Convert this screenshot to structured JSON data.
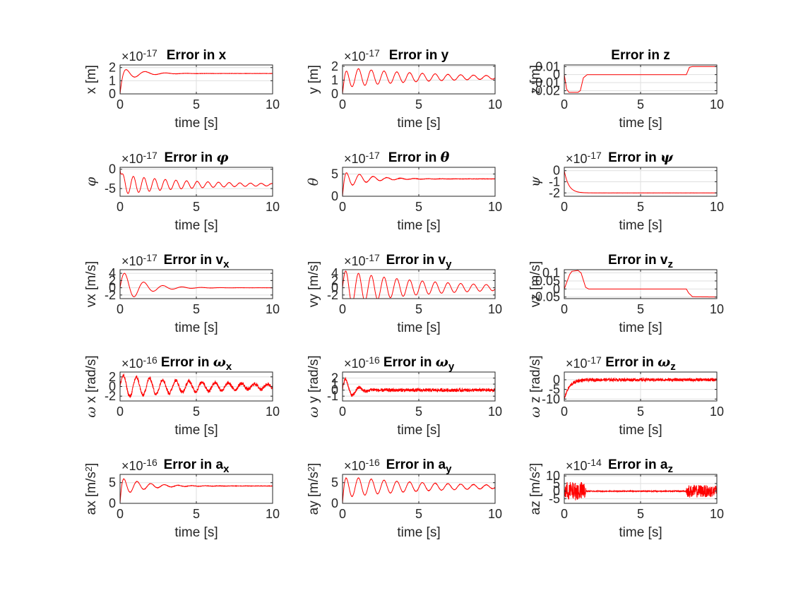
{
  "figure": {
    "background": "#ffffff",
    "line_color": "#ff0000",
    "grid_color": "#dfdfdf",
    "axis_color": "#262626"
  },
  "chart_data": [
    {
      "type": "line",
      "title": "Error in x",
      "title_parts": [
        {
          "t": "Error in x"
        }
      ],
      "xlabel": "time [s]",
      "ylabel": "x [m]",
      "ylabel_parts": [
        {
          "t": "x [m]"
        }
      ],
      "xlim": [
        0,
        10
      ],
      "ylim": [
        0,
        2.2
      ],
      "xticks": [
        0,
        5,
        10
      ],
      "yticks": [
        0,
        1,
        2
      ],
      "exponent": "×10",
      "exponent_power": "-17",
      "grid": true,
      "series": [
        {
          "signal": {
            "kind": "damped",
            "final": 1.55,
            "amp": 0.65,
            "omega": 4.7,
            "decay": 0.9,
            "phase": -1.57,
            "rise": 0.15,
            "noise": 0.01
          }
        }
      ]
    },
    {
      "type": "line",
      "title": "Error in y",
      "title_parts": [
        {
          "t": "Error in y"
        }
      ],
      "xlabel": "time [s]",
      "ylabel": "y [m]",
      "ylabel_parts": [
        {
          "t": "y [m]"
        }
      ],
      "xlim": [
        0,
        10
      ],
      "ylim": [
        0,
        2.1
      ],
      "xticks": [
        0,
        5,
        10
      ],
      "yticks": [
        0,
        1,
        2
      ],
      "exponent": "×10",
      "exponent_power": "-17",
      "grid": true,
      "series": [
        {
          "signal": {
            "kind": "damped",
            "final": 1.2,
            "amp": 0.75,
            "omega": 7.5,
            "decay": 0.18,
            "phase": -1.57,
            "rise": 0.12,
            "noise": 0.01
          }
        }
      ]
    },
    {
      "type": "line",
      "title": "Error in z",
      "title_parts": [
        {
          "t": "Error in z"
        }
      ],
      "xlabel": "time [s]",
      "ylabel": "z [m]",
      "ylabel_parts": [
        {
          "t": "z [m]"
        }
      ],
      "xlim": [
        0,
        10
      ],
      "ylim": [
        -0.024,
        0.012
      ],
      "xticks": [
        0,
        5,
        10
      ],
      "yticks": [
        -0.02,
        -0.01,
        0,
        0.01
      ],
      "grid": true,
      "series": [
        {
          "signal": {
            "kind": "points",
            "points": [
              [
                0,
                0.0
              ],
              [
                0.15,
                -0.018
              ],
              [
                0.3,
                -0.022
              ],
              [
                0.9,
                -0.022
              ],
              [
                1.05,
                -0.02
              ],
              [
                1.25,
                -0.004
              ],
              [
                1.5,
                -0.0001
              ],
              [
                8.0,
                -0.0001
              ],
              [
                8.2,
                0.009
              ],
              [
                8.4,
                0.01
              ],
              [
                10,
                0.01
              ]
            ]
          }
        }
      ]
    },
    {
      "type": "line",
      "title": "Error in φ",
      "title_parts": [
        {
          "t": "Error in "
        },
        {
          "t": "φ",
          "g": 1
        }
      ],
      "xlabel": "time [s]",
      "ylabel": "φ",
      "ylabel_parts": [
        {
          "t": "φ",
          "g": 1
        }
      ],
      "xlim": [
        0,
        10
      ],
      "ylim": [
        -7,
        0.5
      ],
      "xticks": [
        0,
        5,
        10
      ],
      "yticks": [
        -5,
        0
      ],
      "exponent": "×10",
      "exponent_power": "-17",
      "grid": true,
      "series": [
        {
          "signal": {
            "kind": "damped",
            "final": -4.0,
            "amp": 2.6,
            "omega": 9.0,
            "decay": 0.22,
            "phase": -1.57,
            "rise": 0.1,
            "noise": 0.03
          }
        }
      ]
    },
    {
      "type": "line",
      "title": "Error in θ",
      "title_parts": [
        {
          "t": "Error in "
        },
        {
          "t": "θ",
          "g": 1
        }
      ],
      "xlabel": "time [s]",
      "ylabel": "θ",
      "ylabel_parts": [
        {
          "t": "θ",
          "g": 1
        }
      ],
      "xlim": [
        0,
        10
      ],
      "ylim": [
        0,
        6.5
      ],
      "xticks": [
        0,
        5,
        10
      ],
      "yticks": [
        0,
        5
      ],
      "exponent": "×10",
      "exponent_power": "-17",
      "grid": true,
      "series": [
        {
          "signal": {
            "kind": "damped",
            "final": 3.9,
            "amp": 2.2,
            "omega": 7.0,
            "decay": 0.7,
            "phase": -1.57,
            "rise": 0.1,
            "noise": 0.04
          }
        }
      ]
    },
    {
      "type": "line",
      "title": "Error in ψ",
      "title_parts": [
        {
          "t": "Error in "
        },
        {
          "t": "ψ",
          "g": 1
        }
      ],
      "xlabel": "time [s]",
      "ylabel": "ψ",
      "ylabel_parts": [
        {
          "t": "ψ",
          "g": 1
        }
      ],
      "xlim": [
        0,
        10
      ],
      "ylim": [
        -2.3,
        0.3
      ],
      "xticks": [
        0,
        5,
        10
      ],
      "yticks": [
        -2,
        -1,
        0
      ],
      "exponent": "×10",
      "exponent_power": "-17",
      "grid": true,
      "series": [
        {
          "signal": {
            "kind": "expo",
            "final": -2.0,
            "rate": 3.5,
            "noise": 0.005
          }
        }
      ]
    },
    {
      "type": "line",
      "title": "Error in v",
      "title_parts": [
        {
          "t": "Error in v"
        },
        {
          "t": "x",
          "sub": 1
        }
      ],
      "xlabel": "time [s]",
      "ylabel": "vx [m/s]",
      "ylabel_parts": [
        {
          "t": "vx [m/s]"
        }
      ],
      "xlim": [
        0,
        10
      ],
      "ylim": [
        -3,
        5
      ],
      "xticks": [
        0,
        5,
        10
      ],
      "yticks": [
        -2,
        0,
        2,
        4
      ],
      "exponent": "×10",
      "exponent_power": "-17",
      "grid": true,
      "series": [
        {
          "signal": {
            "kind": "damped",
            "final": 0,
            "amp": 5.0,
            "omega": 5.0,
            "decay": 0.75,
            "phase": 0,
            "rise": 0,
            "noise": 0.02
          }
        }
      ]
    },
    {
      "type": "line",
      "title": "Error in v",
      "title_parts": [
        {
          "t": "Error in v"
        },
        {
          "t": "y",
          "sub": 1
        }
      ],
      "xlabel": "time [s]",
      "ylabel": "vy [m/s]",
      "ylabel_parts": [
        {
          "t": "vy [m/s]"
        }
      ],
      "xlim": [
        0,
        10
      ],
      "ylim": [
        -3,
        5
      ],
      "xticks": [
        0,
        5,
        10
      ],
      "yticks": [
        -2,
        0,
        2,
        4
      ],
      "exponent": "×10",
      "exponent_power": "-17",
      "grid": true,
      "series": [
        {
          "signal": {
            "kind": "damped",
            "final": 0,
            "amp": 4.8,
            "omega": 7.5,
            "decay": 0.18,
            "phase": 0,
            "rise": 0,
            "noise": 0.02
          }
        }
      ]
    },
    {
      "type": "line",
      "title": "Error in v",
      "title_parts": [
        {
          "t": "Error in v"
        },
        {
          "t": "z",
          "sub": 1
        }
      ],
      "xlabel": "time [s]",
      "ylabel": "vz [m/s]",
      "ylabel_parts": [
        {
          "t": "vz [m/s]"
        }
      ],
      "xlim": [
        0,
        10
      ],
      "ylim": [
        -0.06,
        0.12
      ],
      "xticks": [
        0,
        5,
        10
      ],
      "yticks": [
        -0.05,
        0,
        0.05,
        0.1
      ],
      "grid": true,
      "series": [
        {
          "signal": {
            "kind": "points",
            "points": [
              [
                0,
                0.0
              ],
              [
                0.35,
                0.09
              ],
              [
                0.5,
                0.11
              ],
              [
                0.9,
                0.115
              ],
              [
                1.1,
                0.1
              ],
              [
                1.4,
                0.01
              ],
              [
                1.6,
                0.0
              ],
              [
                8.0,
                0.0
              ],
              [
                8.15,
                -0.025
              ],
              [
                8.4,
                -0.048
              ],
              [
                10,
                -0.05
              ]
            ]
          }
        }
      ]
    },
    {
      "type": "line",
      "title": "Error in ω",
      "title_parts": [
        {
          "t": "Error in "
        },
        {
          "t": "ω",
          "g": 1
        },
        {
          "t": "x",
          "sub": 1
        }
      ],
      "xlabel": "time [s]",
      "ylabel": "ω x [rad/s]",
      "ylabel_parts": [
        {
          "t": "ω",
          "g": 1
        },
        {
          "t": " x [rad/s]"
        }
      ],
      "xlim": [
        0,
        10
      ],
      "ylim": [
        -3,
        3
      ],
      "xticks": [
        0,
        5,
        10
      ],
      "yticks": [
        -2,
        0,
        2
      ],
      "exponent": "×10",
      "exponent_power": "-16",
      "grid": true,
      "series": [
        {
          "signal": {
            "kind": "damped",
            "final": 0,
            "amp": 2.3,
            "omega": 7.3,
            "decay": 0.16,
            "phase": 0,
            "rise": 0,
            "noise": 0.35
          }
        }
      ]
    },
    {
      "type": "line",
      "title": "Error in ω",
      "title_parts": [
        {
          "t": "Error in "
        },
        {
          "t": "ω",
          "g": 1
        },
        {
          "t": "y",
          "sub": 1
        }
      ],
      "xlabel": "time [s]",
      "ylabel": "ω y [rad/s]",
      "ylabel_parts": [
        {
          "t": "ω",
          "g": 1
        },
        {
          "t": " y [rad/s]"
        }
      ],
      "xlim": [
        0,
        10
      ],
      "ylim": [
        -1.8,
        3
      ],
      "xticks": [
        0,
        5,
        10
      ],
      "yticks": [
        -1,
        0,
        1,
        2
      ],
      "exponent": "×10",
      "exponent_power": "-16",
      "grid": true,
      "series": [
        {
          "signal": {
            "kind": "damped",
            "final": 0,
            "amp": 2.5,
            "omega": 7.0,
            "decay": 1.6,
            "phase": 0,
            "rise": 0,
            "noise": 0.28
          }
        }
      ]
    },
    {
      "type": "line",
      "title": "Error in ω",
      "title_parts": [
        {
          "t": "Error in "
        },
        {
          "t": "ω",
          "g": 1
        },
        {
          "t": "z",
          "sub": 1
        }
      ],
      "xlabel": "time [s]",
      "ylabel": "ω z [rad/s]",
      "ylabel_parts": [
        {
          "t": "ω",
          "g": 1
        },
        {
          "t": " z [rad/s]"
        }
      ],
      "xlim": [
        0,
        10
      ],
      "ylim": [
        -11,
        4
      ],
      "xticks": [
        0,
        5,
        10
      ],
      "yticks": [
        -10,
        -5,
        0
      ],
      "exponent": "×10",
      "exponent_power": "-17",
      "grid": true,
      "series": [
        {
          "signal": {
            "kind": "expo",
            "final": 0,
            "start": -10,
            "rate": 3.0,
            "noise": 0.8
          }
        }
      ]
    },
    {
      "type": "line",
      "title": "Error in a",
      "title_parts": [
        {
          "t": "Error in a"
        },
        {
          "t": "x",
          "sub": 1
        }
      ],
      "xlabel": "time [s]",
      "ylabel": "ax [m/s²]",
      "ylabel_parts": [
        {
          "t": "ax [m/s"
        },
        {
          "t": "2",
          "sup": 1
        },
        {
          "t": "]"
        }
      ],
      "xlim": [
        0,
        10
      ],
      "ylim": [
        0,
        7
      ],
      "xticks": [
        0,
        5,
        10
      ],
      "yticks": [
        0,
        5
      ],
      "exponent": "×10",
      "exponent_power": "-16",
      "grid": true,
      "series": [
        {
          "signal": {
            "kind": "damped",
            "final": 4.2,
            "amp": 2.4,
            "omega": 7.0,
            "decay": 0.7,
            "phase": -1.57,
            "rise": 0.08,
            "noise": 0.05
          }
        }
      ]
    },
    {
      "type": "line",
      "title": "Error in a",
      "title_parts": [
        {
          "t": "Error in a"
        },
        {
          "t": "y",
          "sub": 1
        }
      ],
      "xlabel": "time [s]",
      "ylabel": "ay [m/s²]",
      "ylabel_parts": [
        {
          "t": "ay [m/s"
        },
        {
          "t": "2",
          "sup": 1
        },
        {
          "t": "]"
        }
      ],
      "xlim": [
        0,
        10
      ],
      "ylim": [
        0,
        7
      ],
      "xticks": [
        0,
        5,
        10
      ],
      "yticks": [
        0,
        5
      ],
      "exponent": "×10",
      "exponent_power": "-16",
      "grid": true,
      "series": [
        {
          "signal": {
            "kind": "damped",
            "final": 4.0,
            "amp": 2.6,
            "omega": 7.5,
            "decay": 0.18,
            "phase": -1.57,
            "rise": 0.08,
            "noise": 0.05
          }
        }
      ]
    },
    {
      "type": "line",
      "title": "Error in a",
      "title_parts": [
        {
          "t": "Error in a"
        },
        {
          "t": "z",
          "sub": 1
        }
      ],
      "xlabel": "time [s]",
      "ylabel": "az [m/s²]",
      "ylabel_parts": [
        {
          "t": "az [m/s"
        },
        {
          "t": "2",
          "sup": 1
        },
        {
          "t": "]"
        }
      ],
      "xlim": [
        0,
        10
      ],
      "ylim": [
        -8,
        11
      ],
      "xticks": [
        0,
        5,
        10
      ],
      "yticks": [
        -5,
        0,
        5,
        10
      ],
      "exponent": "×10",
      "exponent_power": "-14",
      "grid": true,
      "series": [
        {
          "signal": {
            "kind": "bursts",
            "final": 0,
            "bursts": [
              [
                0,
                1.4,
                6
              ],
              [
                8.0,
                10,
                4
              ]
            ],
            "noise": 0.3
          }
        }
      ]
    }
  ]
}
